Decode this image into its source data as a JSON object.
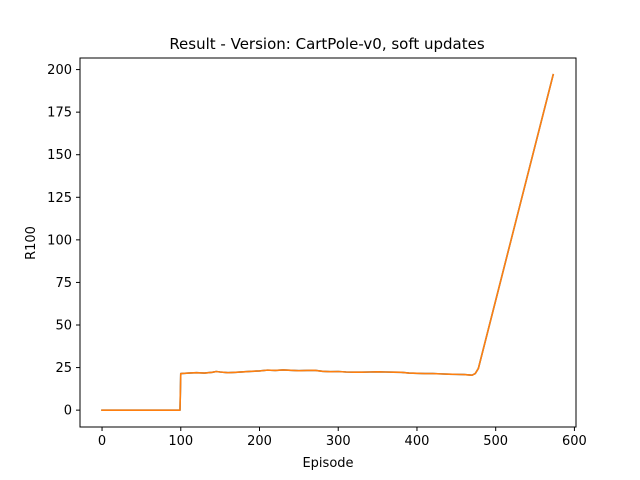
{
  "chart_data": {
    "type": "line",
    "title": "Result - Version: CartPole-v0, soft updates",
    "xlabel": "Episode",
    "ylabel": "R100",
    "xlim": [
      -28,
      602
    ],
    "ylim": [
      -9.9,
      206.8
    ],
    "xticks": [
      0,
      100,
      200,
      300,
      400,
      500,
      600
    ],
    "yticks": [
      0,
      25,
      50,
      75,
      100,
      125,
      150,
      175,
      200
    ],
    "grid": false,
    "legend": "none",
    "series": [
      {
        "color": "#1f77b4",
        "points": [
          [
            0,
            0
          ],
          [
            99,
            0
          ],
          [
            100,
            21.5
          ],
          [
            110,
            21.8
          ],
          [
            120,
            22.0
          ],
          [
            130,
            21.8
          ],
          [
            140,
            22.2
          ],
          [
            145,
            22.7
          ],
          [
            150,
            22.4
          ],
          [
            160,
            22.0
          ],
          [
            170,
            22.2
          ],
          [
            180,
            22.5
          ],
          [
            190,
            22.8
          ],
          [
            200,
            23.0
          ],
          [
            210,
            23.5
          ],
          [
            220,
            23.3
          ],
          [
            230,
            23.6
          ],
          [
            240,
            23.4
          ],
          [
            250,
            23.2
          ],
          [
            260,
            23.3
          ],
          [
            270,
            23.4
          ],
          [
            280,
            22.8
          ],
          [
            290,
            22.6
          ],
          [
            300,
            22.7
          ],
          [
            310,
            22.4
          ],
          [
            320,
            22.3
          ],
          [
            330,
            22.3
          ],
          [
            340,
            22.4
          ],
          [
            350,
            22.5
          ],
          [
            360,
            22.4
          ],
          [
            370,
            22.3
          ],
          [
            380,
            22.2
          ],
          [
            390,
            21.8
          ],
          [
            400,
            21.6
          ],
          [
            410,
            21.5
          ],
          [
            420,
            21.5
          ],
          [
            430,
            21.3
          ],
          [
            440,
            21.1
          ],
          [
            450,
            21.0
          ],
          [
            460,
            20.9
          ],
          [
            470,
            20.5
          ],
          [
            474,
            21.5
          ],
          [
            478,
            24.5
          ],
          [
            573,
            197
          ]
        ]
      },
      {
        "color": "#ff7f0e",
        "points": [
          [
            0,
            0
          ],
          [
            99,
            0
          ],
          [
            100,
            21.5
          ],
          [
            110,
            21.8
          ],
          [
            120,
            22.0
          ],
          [
            130,
            21.8
          ],
          [
            140,
            22.2
          ],
          [
            145,
            22.7
          ],
          [
            150,
            22.4
          ],
          [
            160,
            22.0
          ],
          [
            170,
            22.2
          ],
          [
            180,
            22.5
          ],
          [
            190,
            22.8
          ],
          [
            200,
            23.0
          ],
          [
            210,
            23.5
          ],
          [
            220,
            23.3
          ],
          [
            230,
            23.6
          ],
          [
            240,
            23.4
          ],
          [
            250,
            23.2
          ],
          [
            260,
            23.3
          ],
          [
            270,
            23.4
          ],
          [
            280,
            22.8
          ],
          [
            290,
            22.6
          ],
          [
            300,
            22.7
          ],
          [
            310,
            22.4
          ],
          [
            320,
            22.3
          ],
          [
            330,
            22.3
          ],
          [
            340,
            22.4
          ],
          [
            350,
            22.5
          ],
          [
            360,
            22.4
          ],
          [
            370,
            22.3
          ],
          [
            380,
            22.2
          ],
          [
            390,
            21.8
          ],
          [
            400,
            21.6
          ],
          [
            410,
            21.5
          ],
          [
            420,
            21.5
          ],
          [
            430,
            21.3
          ],
          [
            440,
            21.1
          ],
          [
            450,
            21.0
          ],
          [
            460,
            20.9
          ],
          [
            470,
            20.5
          ],
          [
            474,
            21.5
          ],
          [
            478,
            24.5
          ],
          [
            573,
            197
          ]
        ]
      }
    ]
  }
}
